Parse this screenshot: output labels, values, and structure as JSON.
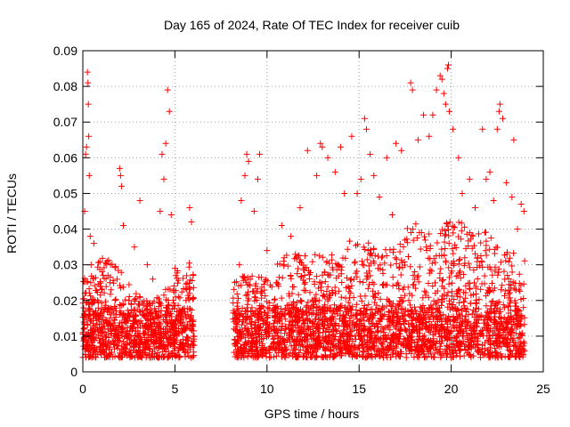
{
  "chart_data": {
    "type": "scatter",
    "title": "Day 165 of 2024, Rate Of TEC Index for receiver cuib",
    "xlabel": "GPS time / hours",
    "ylabel": "ROTI / TECUs",
    "xlim": [
      0,
      25
    ],
    "ylim": [
      0,
      0.09
    ],
    "xticks": [
      0,
      5,
      10,
      15,
      20,
      25
    ],
    "xtick_labels": [
      "0",
      "5",
      "10",
      "15",
      "20",
      "25"
    ],
    "yticks": [
      0,
      0.01,
      0.02,
      0.03,
      0.04,
      0.05,
      0.06,
      0.07,
      0.08,
      0.09
    ],
    "ytick_labels": [
      "0",
      "0.01",
      "0.02",
      "0.03",
      "0.04",
      "0.05",
      "0.06",
      "0.07",
      "0.08",
      "0.09"
    ],
    "grid": true,
    "marker": "+",
    "color": "#ff0000",
    "series": [
      {
        "values": [
          [
            0.05,
            0.012
          ],
          [
            0.1,
            0.045
          ],
          [
            0.15,
            0.061
          ],
          [
            0.2,
            0.063
          ],
          [
            0.25,
            0.084
          ],
          [
            0.28,
            0.081
          ],
          [
            0.3,
            0.075
          ],
          [
            0.32,
            0.066
          ],
          [
            0.35,
            0.055
          ],
          [
            0.4,
            0.038
          ],
          [
            0.45,
            0.03
          ],
          [
            0.6,
            0.036
          ],
          [
            0.8,
            0.02
          ],
          [
            1.0,
            0.012
          ],
          [
            1.2,
            0.018
          ],
          [
            1.5,
            0.03
          ],
          [
            1.8,
            0.016
          ],
          [
            2.0,
            0.057
          ],
          [
            2.05,
            0.055
          ],
          [
            2.1,
            0.052
          ],
          [
            2.2,
            0.041
          ],
          [
            2.5,
            0.02
          ],
          [
            2.8,
            0.035
          ],
          [
            3.1,
            0.048
          ],
          [
            3.5,
            0.03
          ],
          [
            3.8,
            0.026
          ],
          [
            4.2,
            0.045
          ],
          [
            4.3,
            0.061
          ],
          [
            4.4,
            0.054
          ],
          [
            4.5,
            0.064
          ],
          [
            4.6,
            0.079
          ],
          [
            4.7,
            0.073
          ],
          [
            4.8,
            0.044
          ],
          [
            5.0,
            0.029
          ],
          [
            5.3,
            0.014
          ],
          [
            5.6,
            0.02
          ],
          [
            5.8,
            0.046
          ],
          [
            5.9,
            0.042
          ],
          [
            6.0,
            0.01
          ],
          [
            8.2,
            0.012
          ],
          [
            8.5,
            0.03
          ],
          [
            8.6,
            0.048
          ],
          [
            8.8,
            0.055
          ],
          [
            8.9,
            0.061
          ],
          [
            9.0,
            0.059
          ],
          [
            9.3,
            0.045
          ],
          [
            9.5,
            0.054
          ],
          [
            9.6,
            0.061
          ],
          [
            10.0,
            0.034
          ],
          [
            10.5,
            0.025
          ],
          [
            10.8,
            0.041
          ],
          [
            11.3,
            0.038
          ],
          [
            11.8,
            0.046
          ],
          [
            12.2,
            0.062
          ],
          [
            12.7,
            0.055
          ],
          [
            12.9,
            0.064
          ],
          [
            13.0,
            0.063
          ],
          [
            13.3,
            0.06
          ],
          [
            13.7,
            0.056
          ],
          [
            14.0,
            0.063
          ],
          [
            14.2,
            0.05
          ],
          [
            14.6,
            0.066
          ],
          [
            14.9,
            0.05
          ],
          [
            15.1,
            0.054
          ],
          [
            15.3,
            0.071
          ],
          [
            15.4,
            0.068
          ],
          [
            15.6,
            0.061
          ],
          [
            15.8,
            0.055
          ],
          [
            16.1,
            0.049
          ],
          [
            16.5,
            0.06
          ],
          [
            16.8,
            0.044
          ],
          [
            17.0,
            0.064
          ],
          [
            17.3,
            0.062
          ],
          [
            17.8,
            0.081
          ],
          [
            17.9,
            0.079
          ],
          [
            18.2,
            0.065
          ],
          [
            18.5,
            0.072
          ],
          [
            18.8,
            0.066
          ],
          [
            19.0,
            0.072
          ],
          [
            19.2,
            0.079
          ],
          [
            19.4,
            0.083
          ],
          [
            19.5,
            0.082
          ],
          [
            19.6,
            0.078
          ],
          [
            19.7,
            0.075
          ],
          [
            19.8,
            0.085
          ],
          [
            19.85,
            0.086
          ],
          [
            19.9,
            0.073
          ],
          [
            20.1,
            0.068
          ],
          [
            20.4,
            0.06
          ],
          [
            20.6,
            0.05
          ],
          [
            21.0,
            0.054
          ],
          [
            21.3,
            0.046
          ],
          [
            21.7,
            0.068
          ],
          [
            21.9,
            0.054
          ],
          [
            22.1,
            0.056
          ],
          [
            22.3,
            0.048
          ],
          [
            22.5,
            0.068
          ],
          [
            22.6,
            0.073
          ],
          [
            22.65,
            0.075
          ],
          [
            22.8,
            0.071
          ],
          [
            23.0,
            0.053
          ],
          [
            23.3,
            0.049
          ],
          [
            23.4,
            0.065
          ],
          [
            23.6,
            0.04
          ],
          [
            23.8,
            0.047
          ],
          [
            23.95,
            0.045
          ]
        ]
      }
    ]
  }
}
